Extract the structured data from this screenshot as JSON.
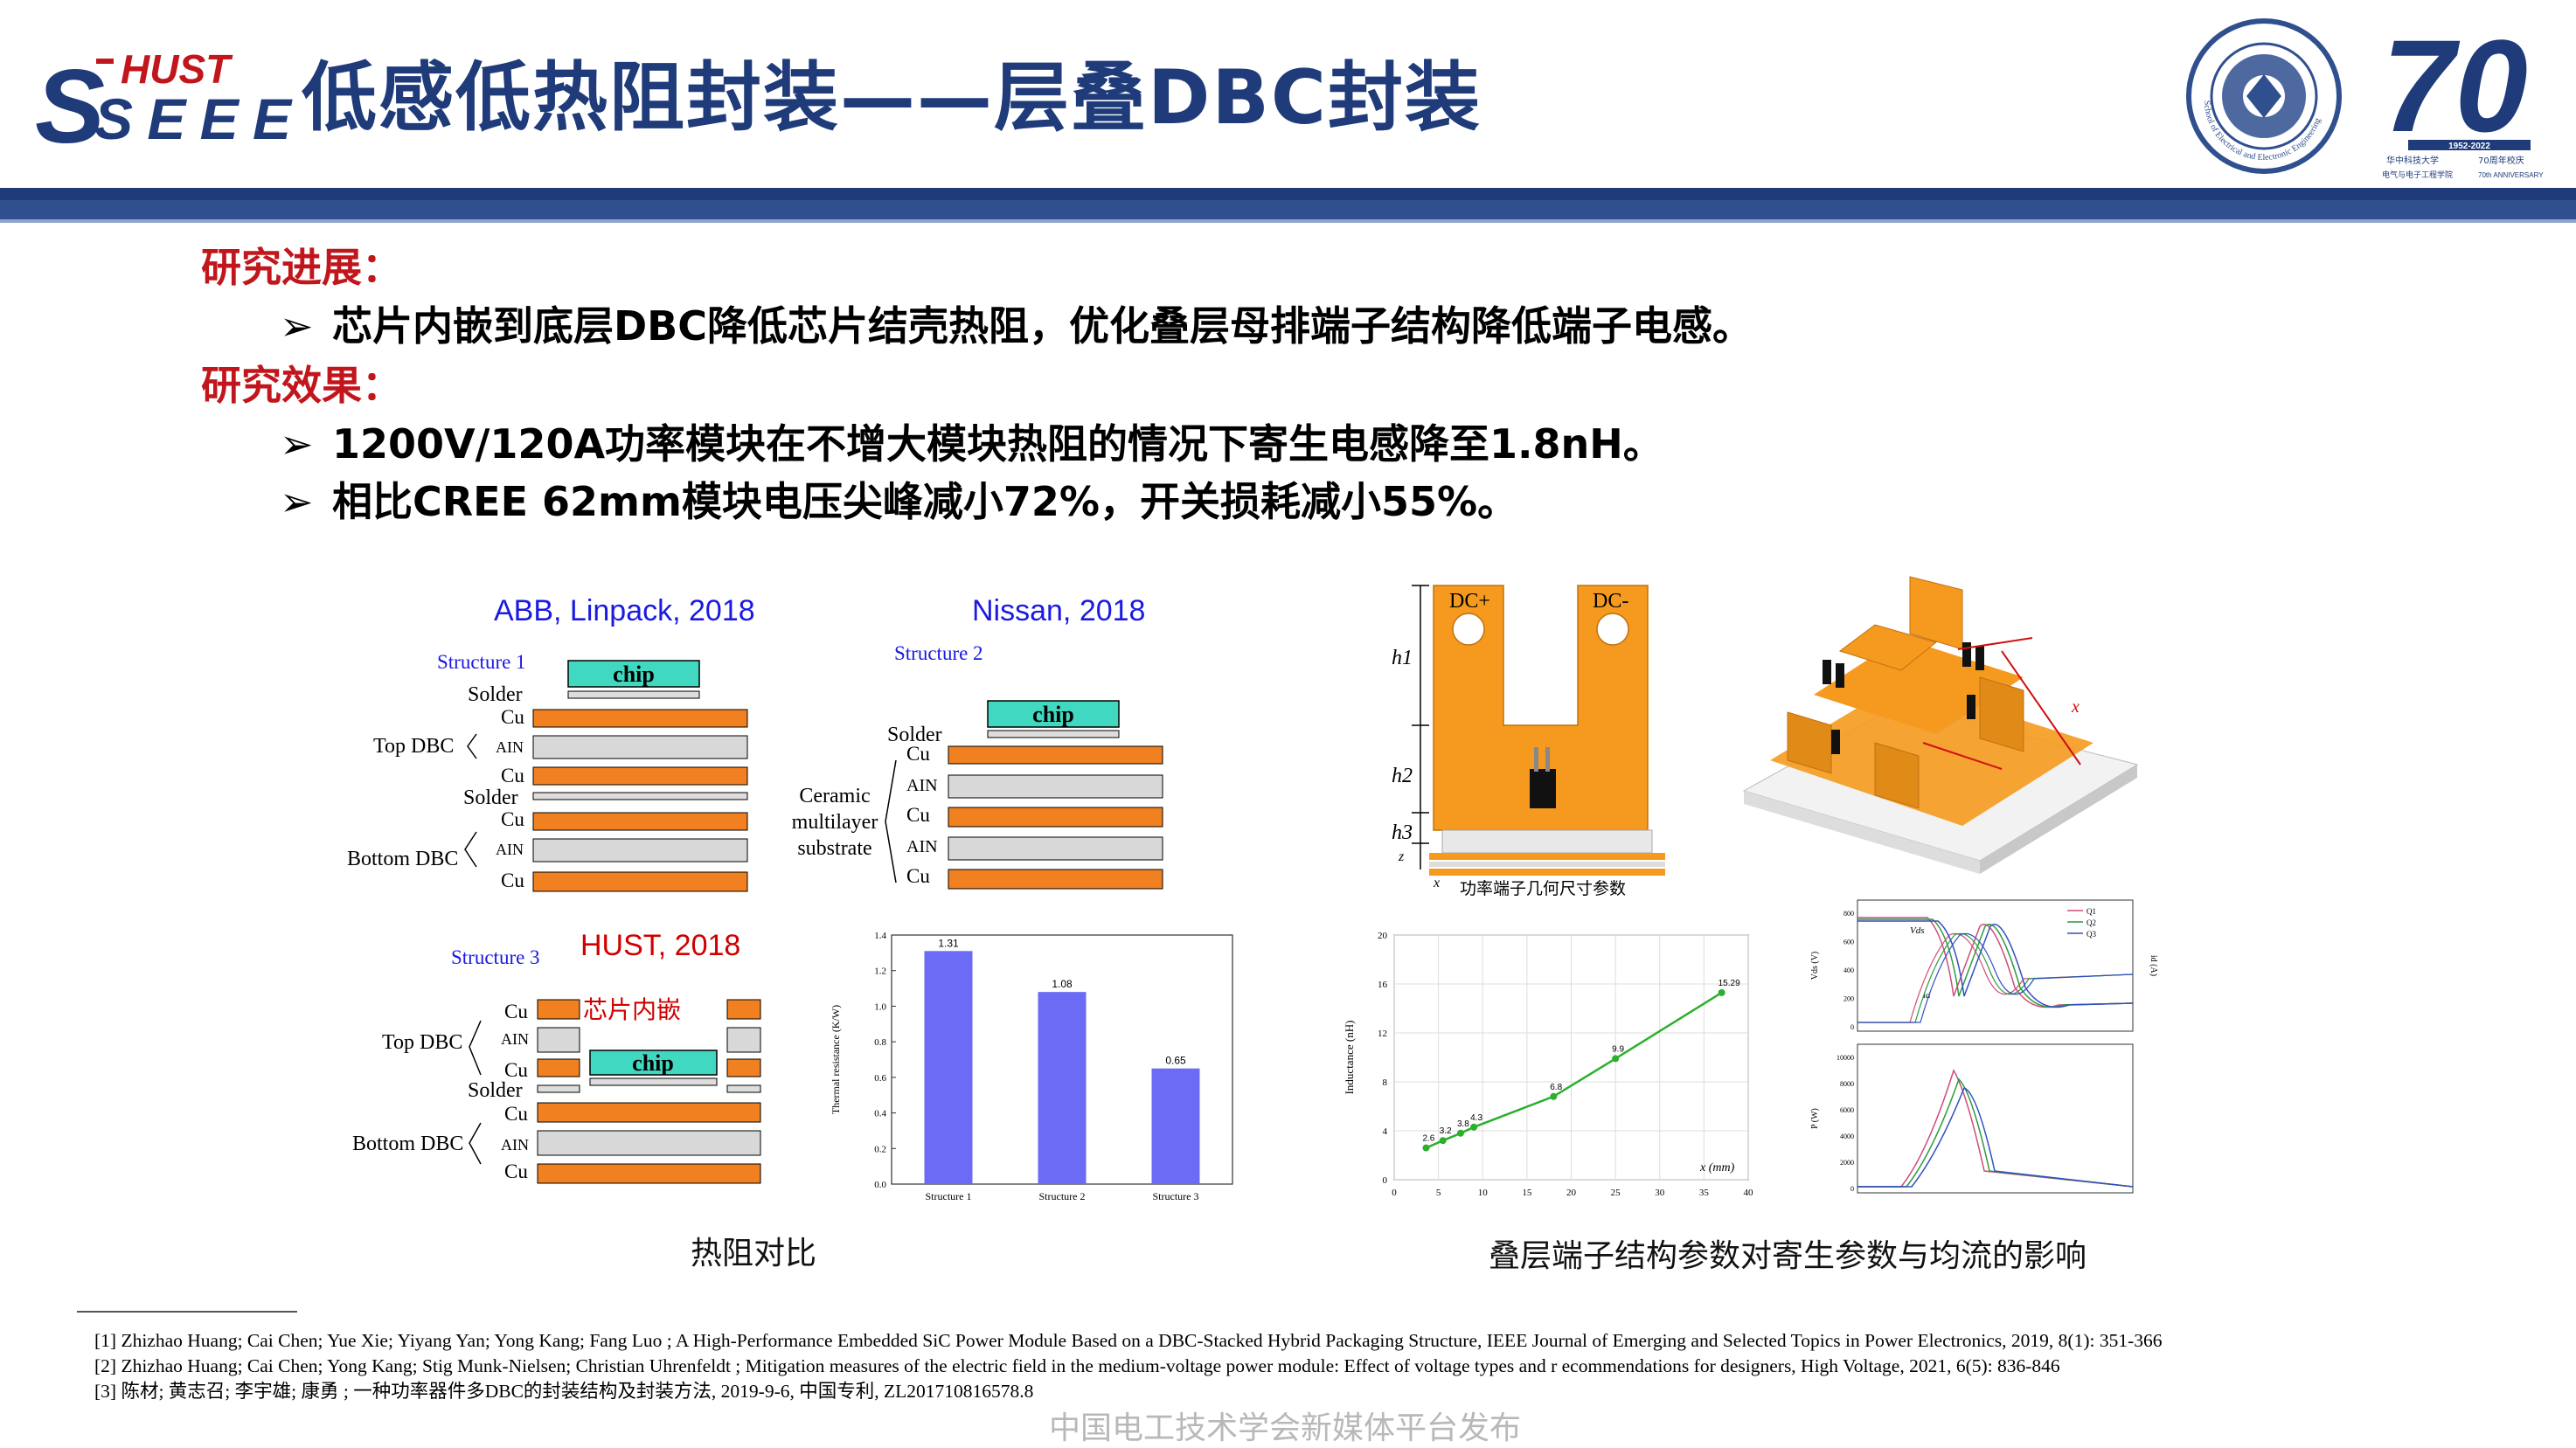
{
  "header": {
    "logo_hust": "HUST",
    "logo_seee": "SEEE",
    "title": "低感低热阻封装——层叠DBC封装",
    "emblem_label": "School of Electrical and Electronic Engineering",
    "anniv_number": "70",
    "anniv_years": "1952-2022",
    "anniv_line1": "华中科技大学",
    "anniv_line2": "70周年校庆",
    "anniv_line3": "电气与电子工程学院",
    "anniv_line4": "70th ANNIVERSARY"
  },
  "sections": [
    {
      "heading": "研究进展：",
      "bullets": [
        "芯片内嵌到底层DBC降低芯片结壳热阻，优化叠层母排端子结构降低端子电感。"
      ]
    },
    {
      "heading": "研究效果：",
      "bullets": [
        "1200V/120A功率模块在不增大模块热阻的情况下寄生电感降至1.8nH。",
        "相比CREE 62mm模块电压尖峰减小72%，开关损耗减小55%。"
      ]
    }
  ],
  "bullet_symbol": "➢",
  "structures": {
    "s1": {
      "source": "ABB, Linpack, 2018",
      "name": "Structure 1",
      "chip": "chip",
      "solder": "Solder",
      "top_dbc": "Top DBC",
      "bottom_dbc": "Bottom DBC",
      "cu": "Cu",
      "ain": "AIN"
    },
    "s2": {
      "source": "Nissan, 2018",
      "name": "Structure 2",
      "chip": "chip",
      "solder": "Solder",
      "substrate_l1": "Ceramic",
      "substrate_l2": "multilayer",
      "substrate_l3": "substrate",
      "cu": "Cu",
      "ain": "AIN"
    },
    "s3": {
      "source": "HUST, 2018",
      "name": "Structure 3",
      "embedded": "芯片内嵌",
      "chip": "chip",
      "solder": "Solder",
      "top_dbc": "Top DBC",
      "bottom_dbc": "Bottom DBC",
      "cu": "Cu",
      "ain": "AIN"
    }
  },
  "thermal_chart": {
    "type": "bar",
    "categories": [
      "Structure 1",
      "Structure 2",
      "Structure 3"
    ],
    "values": [
      1.31,
      1.08,
      0.65
    ],
    "value_labels": [
      "1.31",
      "1.08",
      "0.65"
    ],
    "ylabel": "Thermal resistance (K/W)",
    "ylim": [
      0,
      1.4
    ],
    "yticks": [
      "0.0",
      "0.2",
      "0.4",
      "0.6",
      "0.8",
      "1.0",
      "1.2",
      "1.4"
    ],
    "color": "#6b6bf5"
  },
  "terminal_diagram": {
    "dc_plus": "DC+",
    "dc_minus": "DC-",
    "h1": "h1",
    "h2": "h2",
    "h3": "h3",
    "z": "z",
    "x": "x",
    "caption": "功率端子几何尺寸参数"
  },
  "module_3d": {
    "x_label": "x"
  },
  "inductance_chart": {
    "type": "line",
    "x": [
      3.6,
      5.5,
      7.5,
      9.0,
      18,
      25,
      37
    ],
    "y": [
      2.6,
      3.2,
      3.8,
      4.3,
      6.8,
      9.9,
      15.29
    ],
    "point_labels": [
      "2.6",
      "3.2",
      "3.8",
      "4.3",
      "6.8",
      "9.9",
      "15.29"
    ],
    "xlabel": "x (mm)",
    "ylabel": "Inductance (nH)",
    "xlim": [
      0,
      40
    ],
    "ylim": [
      0,
      20
    ],
    "xticks": [
      "0",
      "5",
      "10",
      "15",
      "20",
      "25",
      "30",
      "35",
      "40"
    ],
    "yticks": [
      "0",
      "4",
      "8",
      "12",
      "16",
      "20"
    ],
    "color": "#2ab02a"
  },
  "waveform": {
    "vds": "Vds",
    "id": "id",
    "legend": [
      "Q1",
      "Q2",
      "Q3"
    ],
    "top_ylabel": "Vds (V)",
    "top_rlabel": "id (A)",
    "bot_ylabel": "P (W)",
    "top_yticks": [
      "800",
      "600",
      "400",
      "200",
      "0"
    ],
    "bot_yticks": [
      "10000",
      "8000",
      "6000",
      "4000",
      "2000",
      "0"
    ],
    "colors": [
      "#d04b7a",
      "#2a9c3a",
      "#3050c0"
    ]
  },
  "captions": {
    "left": "热阻对比",
    "right": "叠层端子结构参数对寄生参数与均流的影响"
  },
  "references": [
    "[1] Zhizhao Huang; Cai Chen; Yue Xie; Yiyang Yan; Yong Kang; Fang Luo ; A High-Performance Embedded SiC Power Module Based on a DBC-Stacked Hybrid Packaging Structure, IEEE Journal of Emerging and Selected Topics in Power Electronics, 2019, 8(1): 351-366",
    "[2] Zhizhao Huang; Cai Chen; Yong Kang; Stig Munk-Nielsen; Christian Uhrenfeldt ; Mitigation measures of the electric field in the medium-voltage power module: Effect of voltage types and r ecommendations for designers, High Voltage, 2021, 6(5): 836-846",
    "[3] 陈材; 黄志召; 李宇雄; 康勇 ; 一种功率器件多DBC的封装结构及封装方法, 2019-9-6, 中国专利, ZL201710816578.8"
  ],
  "watermark": "中国电工技术学会新媒体平台发布"
}
